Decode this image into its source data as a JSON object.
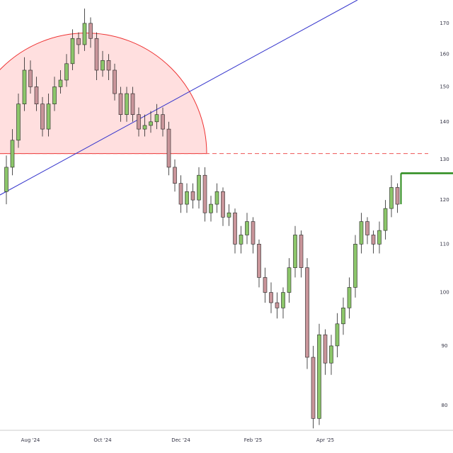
{
  "chart_data": {
    "type": "candlestick",
    "categories": [
      null,
      null,
      null,
      null,
      "Aug '24",
      null,
      null,
      null,
      null,
      null,
      null,
      null,
      null,
      null,
      null,
      null,
      "Oct '24",
      null,
      null,
      null,
      null,
      null,
      null,
      null,
      null,
      null,
      null,
      null,
      null,
      "Dec '24",
      null,
      null,
      null,
      null,
      null,
      null,
      null,
      null,
      null,
      null,
      null,
      "Feb '25",
      null,
      null,
      null,
      null,
      null,
      null,
      null,
      null,
      null,
      null,
      null,
      "Apr '25",
      null,
      null,
      null,
      null,
      null,
      null,
      null,
      null,
      null,
      null,
      null,
      null
    ],
    "open": [
      122,
      128,
      135,
      145,
      155,
      150,
      145,
      138,
      145,
      150,
      152,
      157,
      165,
      163,
      170,
      165,
      155,
      158,
      155,
      148,
      142,
      148,
      142,
      138,
      139,
      140,
      142,
      138,
      128,
      124,
      119,
      122,
      120,
      126,
      117,
      119,
      122,
      116,
      117,
      110,
      112,
      115,
      110,
      103,
      100,
      98,
      97,
      100,
      105,
      112,
      105,
      88,
      78,
      92,
      87,
      90,
      94,
      97,
      101,
      110,
      115,
      112,
      110,
      113,
      118,
      123
    ],
    "high": [
      131,
      138,
      148,
      159,
      158,
      153,
      147,
      148,
      153,
      155,
      160,
      168,
      167,
      175,
      172,
      167,
      161,
      160,
      157,
      150,
      150,
      150,
      144,
      142,
      143,
      145,
      144,
      140,
      130,
      126,
      124,
      124,
      128,
      128,
      121,
      124,
      123,
      119,
      118,
      114,
      117,
      116,
      111,
      105,
      102,
      100,
      101,
      107,
      114,
      113,
      107,
      90,
      94,
      93,
      92,
      96,
      99,
      103,
      112,
      117,
      116,
      113,
      115,
      120,
      126,
      124
    ],
    "low": [
      119,
      126,
      133,
      143,
      148,
      143,
      136,
      136,
      143,
      148,
      150,
      155,
      160,
      161,
      162,
      152,
      153,
      152,
      146,
      140,
      140,
      140,
      136,
      136,
      137,
      138,
      136,
      126,
      122,
      117,
      117,
      118,
      118,
      115,
      115,
      117,
      114,
      114,
      108,
      108,
      110,
      108,
      101,
      98,
      96,
      95,
      95,
      98,
      103,
      103,
      86,
      76.5,
      77,
      85,
      85,
      88,
      92,
      95,
      99,
      108,
      110,
      108,
      108,
      111,
      116,
      117
    ],
    "close": [
      128,
      135,
      145,
      155,
      150,
      145,
      138,
      145,
      150,
      152,
      157,
      165,
      163,
      170,
      165,
      155,
      158,
      155,
      148,
      142,
      148,
      142,
      138,
      139,
      140,
      142,
      138,
      128,
      124,
      119,
      122,
      120,
      126,
      117,
      119,
      122,
      116,
      117,
      110,
      112,
      115,
      110,
      103,
      100,
      98,
      97,
      100,
      105,
      112,
      105,
      88,
      78,
      92,
      87,
      90,
      94,
      97,
      101,
      110,
      115,
      112,
      110,
      113,
      118,
      123,
      119
    ],
    "up_color": "#8cc66a",
    "down_color": "#c9959a",
    "ylim": [
      76.2,
      178
    ],
    "log_scale": true,
    "yticks": [
      80,
      90,
      100,
      110,
      120,
      130,
      140,
      150,
      160,
      170
    ],
    "reference_level": 131.5,
    "target_level": 126.5
  }
}
